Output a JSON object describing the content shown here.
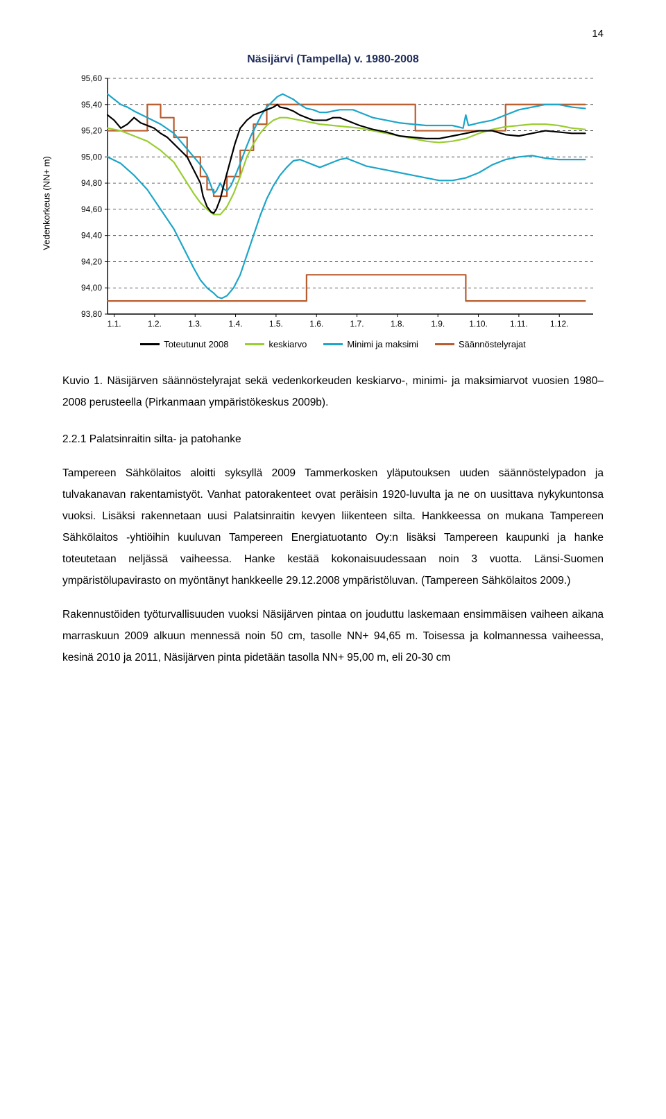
{
  "page_number": "14",
  "chart": {
    "type": "line",
    "title": "Näsijärvi (Tampella) v. 1980-2008",
    "ylabel": "Vedenkorkeus (NN+ m)",
    "ylim": [
      93.8,
      95.6
    ],
    "ytick_step": 0.2,
    "yticks": [
      "93,80",
      "94,00",
      "94,20",
      "94,40",
      "94,60",
      "94,80",
      "95,00",
      "95,20",
      "95,40",
      "95,60"
    ],
    "xticks": [
      "1.1.",
      "1.2.",
      "1.3.",
      "1.4.",
      "1.5.",
      "1.6.",
      "1.7.",
      "1.8.",
      "1.9.",
      "1.10.",
      "1.11.",
      "1.12."
    ],
    "background_color": "#ffffff",
    "grid_color": "#333333",
    "grid_dash": "4,4",
    "axis_color": "#000000",
    "line_width": 2.2,
    "title_color": "#1f2c5c",
    "title_fontsize": 16,
    "label_fontsize": 13,
    "tick_fontsize": 12,
    "series": {
      "toteutunut2008": {
        "label": "Toteutunut 2008",
        "color": "#000000",
        "data": [
          [
            0,
            95.32
          ],
          [
            5,
            95.28
          ],
          [
            10,
            95.22
          ],
          [
            15,
            95.25
          ],
          [
            20,
            95.3
          ],
          [
            25,
            95.26
          ],
          [
            30,
            95.24
          ],
          [
            35,
            95.22
          ],
          [
            40,
            95.18
          ],
          [
            45,
            95.15
          ],
          [
            50,
            95.1
          ],
          [
            55,
            95.05
          ],
          [
            60,
            95.0
          ],
          [
            65,
            94.9
          ],
          [
            70,
            94.8
          ],
          [
            72,
            94.7
          ],
          [
            75,
            94.62
          ],
          [
            78,
            94.58
          ],
          [
            80,
            94.57
          ],
          [
            82,
            94.6
          ],
          [
            85,
            94.68
          ],
          [
            88,
            94.8
          ],
          [
            92,
            94.95
          ],
          [
            96,
            95.1
          ],
          [
            100,
            95.22
          ],
          [
            105,
            95.28
          ],
          [
            110,
            95.32
          ],
          [
            115,
            95.34
          ],
          [
            120,
            95.36
          ],
          [
            125,
            95.38
          ],
          [
            128,
            95.4
          ],
          [
            130,
            95.38
          ],
          [
            135,
            95.37
          ],
          [
            140,
            95.35
          ],
          [
            145,
            95.32
          ],
          [
            150,
            95.3
          ],
          [
            155,
            95.28
          ],
          [
            160,
            95.28
          ],
          [
            165,
            95.28
          ],
          [
            170,
            95.3
          ],
          [
            175,
            95.3
          ],
          [
            180,
            95.28
          ],
          [
            185,
            95.26
          ],
          [
            190,
            95.24
          ],
          [
            200,
            95.21
          ],
          [
            210,
            95.19
          ],
          [
            220,
            95.16
          ],
          [
            230,
            95.15
          ],
          [
            240,
            95.14
          ],
          [
            250,
            95.14
          ],
          [
            260,
            95.16
          ],
          [
            270,
            95.18
          ],
          [
            280,
            95.2
          ],
          [
            290,
            95.2
          ],
          [
            300,
            95.17
          ],
          [
            310,
            95.16
          ],
          [
            320,
            95.18
          ],
          [
            330,
            95.2
          ],
          [
            340,
            95.19
          ],
          [
            350,
            95.18
          ],
          [
            360,
            95.18
          ]
        ]
      },
      "keskiarvo": {
        "label": "keskiarvo",
        "color": "#9acd32",
        "data": [
          [
            0,
            95.22
          ],
          [
            10,
            95.2
          ],
          [
            20,
            95.16
          ],
          [
            30,
            95.12
          ],
          [
            40,
            95.05
          ],
          [
            50,
            94.96
          ],
          [
            55,
            94.88
          ],
          [
            60,
            94.8
          ],
          [
            65,
            94.72
          ],
          [
            70,
            94.65
          ],
          [
            75,
            94.6
          ],
          [
            80,
            94.56
          ],
          [
            85,
            94.56
          ],
          [
            90,
            94.62
          ],
          [
            95,
            94.72
          ],
          [
            100,
            94.85
          ],
          [
            105,
            95.0
          ],
          [
            110,
            95.1
          ],
          [
            115,
            95.18
          ],
          [
            120,
            95.24
          ],
          [
            125,
            95.28
          ],
          [
            130,
            95.3
          ],
          [
            135,
            95.3
          ],
          [
            140,
            95.29
          ],
          [
            150,
            95.27
          ],
          [
            160,
            95.25
          ],
          [
            170,
            95.24
          ],
          [
            180,
            95.23
          ],
          [
            190,
            95.22
          ],
          [
            200,
            95.2
          ],
          [
            210,
            95.18
          ],
          [
            220,
            95.16
          ],
          [
            230,
            95.14
          ],
          [
            240,
            95.12
          ],
          [
            250,
            95.11
          ],
          [
            260,
            95.12
          ],
          [
            270,
            95.14
          ],
          [
            280,
            95.18
          ],
          [
            290,
            95.21
          ],
          [
            300,
            95.23
          ],
          [
            310,
            95.24
          ],
          [
            320,
            95.25
          ],
          [
            330,
            95.25
          ],
          [
            340,
            95.24
          ],
          [
            350,
            95.22
          ],
          [
            360,
            95.21
          ]
        ]
      },
      "maksimi": {
        "label": "Minimi ja maksimi",
        "color": "#1ca5c9",
        "data": [
          [
            0,
            95.48
          ],
          [
            5,
            95.44
          ],
          [
            10,
            95.4
          ],
          [
            15,
            95.38
          ],
          [
            20,
            95.35
          ],
          [
            30,
            95.3
          ],
          [
            40,
            95.25
          ],
          [
            50,
            95.18
          ],
          [
            55,
            95.12
          ],
          [
            60,
            95.06
          ],
          [
            65,
            95.0
          ],
          [
            70,
            94.94
          ],
          [
            75,
            94.86
          ],
          [
            78,
            94.78
          ],
          [
            80,
            94.72
          ],
          [
            82,
            94.74
          ],
          [
            84,
            94.78
          ],
          [
            85,
            94.8
          ],
          [
            87,
            94.76
          ],
          [
            90,
            94.74
          ],
          [
            93,
            94.78
          ],
          [
            96,
            94.85
          ],
          [
            100,
            94.95
          ],
          [
            104,
            95.06
          ],
          [
            108,
            95.16
          ],
          [
            112,
            95.24
          ],
          [
            116,
            95.32
          ],
          [
            120,
            95.38
          ],
          [
            124,
            95.42
          ],
          [
            128,
            95.46
          ],
          [
            132,
            95.48
          ],
          [
            136,
            95.46
          ],
          [
            140,
            95.44
          ],
          [
            145,
            95.4
          ],
          [
            150,
            95.37
          ],
          [
            155,
            95.36
          ],
          [
            160,
            95.34
          ],
          [
            165,
            95.34
          ],
          [
            170,
            95.35
          ],
          [
            175,
            95.36
          ],
          [
            180,
            95.36
          ],
          [
            185,
            95.36
          ],
          [
            190,
            95.34
          ],
          [
            195,
            95.32
          ],
          [
            200,
            95.3
          ],
          [
            210,
            95.28
          ],
          [
            220,
            95.26
          ],
          [
            230,
            95.25
          ],
          [
            240,
            95.24
          ],
          [
            250,
            95.24
          ],
          [
            260,
            95.24
          ],
          [
            268,
            95.22
          ],
          [
            270,
            95.32
          ],
          [
            272,
            95.24
          ],
          [
            280,
            95.26
          ],
          [
            290,
            95.28
          ],
          [
            300,
            95.32
          ],
          [
            310,
            95.36
          ],
          [
            320,
            95.38
          ],
          [
            330,
            95.4
          ],
          [
            340,
            95.4
          ],
          [
            350,
            95.38
          ],
          [
            360,
            95.37
          ]
        ]
      },
      "minimi": {
        "label": "",
        "color": "#1ca5c9",
        "data": [
          [
            0,
            95.0
          ],
          [
            10,
            94.95
          ],
          [
            20,
            94.86
          ],
          [
            30,
            94.75
          ],
          [
            40,
            94.6
          ],
          [
            50,
            94.45
          ],
          [
            55,
            94.35
          ],
          [
            60,
            94.25
          ],
          [
            65,
            94.15
          ],
          [
            70,
            94.06
          ],
          [
            75,
            94.0
          ],
          [
            80,
            93.96
          ],
          [
            83,
            93.93
          ],
          [
            86,
            93.92
          ],
          [
            90,
            93.94
          ],
          [
            95,
            94.0
          ],
          [
            100,
            94.1
          ],
          [
            105,
            94.25
          ],
          [
            110,
            94.4
          ],
          [
            115,
            94.55
          ],
          [
            120,
            94.68
          ],
          [
            125,
            94.78
          ],
          [
            130,
            94.86
          ],
          [
            135,
            94.92
          ],
          [
            140,
            94.97
          ],
          [
            145,
            94.98
          ],
          [
            150,
            94.96
          ],
          [
            155,
            94.94
          ],
          [
            160,
            94.92
          ],
          [
            165,
            94.94
          ],
          [
            170,
            94.96
          ],
          [
            175,
            94.98
          ],
          [
            180,
            94.99
          ],
          [
            185,
            94.97
          ],
          [
            190,
            94.95
          ],
          [
            195,
            94.93
          ],
          [
            200,
            94.92
          ],
          [
            210,
            94.9
          ],
          [
            220,
            94.88
          ],
          [
            230,
            94.86
          ],
          [
            240,
            94.84
          ],
          [
            250,
            94.82
          ],
          [
            260,
            94.82
          ],
          [
            270,
            94.84
          ],
          [
            280,
            94.88
          ],
          [
            290,
            94.94
          ],
          [
            300,
            94.98
          ],
          [
            310,
            95.0
          ],
          [
            320,
            95.01
          ],
          [
            330,
            94.99
          ],
          [
            340,
            94.98
          ],
          [
            350,
            94.98
          ],
          [
            360,
            94.98
          ]
        ]
      },
      "saannostelyrajat_yla": {
        "label": "Säännöstelyrajat",
        "color": "#b85c2e",
        "step": true,
        "data": [
          [
            0,
            95.2
          ],
          [
            30,
            95.4
          ],
          [
            32,
            95.4
          ],
          [
            40,
            95.3
          ],
          [
            50,
            95.15
          ],
          [
            60,
            95.0
          ],
          [
            70,
            94.85
          ],
          [
            75,
            94.75
          ],
          [
            80,
            94.7
          ],
          [
            82,
            94.7
          ],
          [
            90,
            94.85
          ],
          [
            100,
            95.05
          ],
          [
            110,
            95.25
          ],
          [
            120,
            95.4
          ],
          [
            128,
            95.4
          ],
          [
            230,
            95.4
          ],
          [
            232,
            95.2
          ],
          [
            298,
            95.2
          ],
          [
            300,
            95.4
          ],
          [
            360,
            95.4
          ]
        ]
      },
      "saannostelyrajat_ala": {
        "label": "",
        "color": "#b85c2e",
        "step": true,
        "data": [
          [
            0,
            93.9
          ],
          [
            150,
            93.9
          ],
          [
            150,
            94.1
          ],
          [
            270,
            94.1
          ],
          [
            270,
            93.9
          ],
          [
            360,
            93.9
          ]
        ]
      }
    },
    "legend_order": [
      "toteutunut2008",
      "keskiarvo",
      "maksimi",
      "saannostelyrajat_yla"
    ]
  },
  "caption": "Kuvio 1. Näsijärven säännöstelyrajat sekä vedenkorkeuden keskiarvo-, minimi- ja maksimiarvot vuosien 1980–2008 perusteella (Pirkanmaan ympäristökeskus 2009b).",
  "section_heading": "2.2.1   Palatsinraitin silta- ja patohanke",
  "paragraphs": [
    "Tampereen Sähkölaitos aloitti syksyllä 2009 Tammerkosken yläputouksen uuden säännöstelypadon ja tulvakanavan rakentamistyöt. Vanhat patorakenteet ovat peräisin 1920-luvulta ja ne on uusittava nykykuntonsa vuoksi. Lisäksi rakennetaan uusi Palatsinraitin kevyen liikenteen silta. Hankkeessa on mukana Tampereen Sähkölaitos -yhtiöihin kuuluvan Tampereen Energiatuotanto Oy:n lisäksi Tampereen kaupunki ja hanke toteutetaan neljässä vaiheessa. Hanke kestää kokonaisuudessaan noin 3 vuotta. Länsi-Suomen ympäristölupavirasto on myöntänyt hankkeelle 29.12.2008 ympäristöluvan. (Tampereen Sähkölaitos 2009.)",
    "Rakennustöiden työturvallisuuden vuoksi Näsijärven pintaa on jouduttu laskemaan ensimmäisen vaiheen aikana marraskuun 2009 alkuun mennessä noin 50 cm, tasolle NN+ 94,65 m. Toisessa ja kolmannessa vaiheessa, kesinä 2010 ja 2011, Näsijärven pinta pidetään tasolla NN+ 95,00 m, eli 20-30 cm"
  ]
}
